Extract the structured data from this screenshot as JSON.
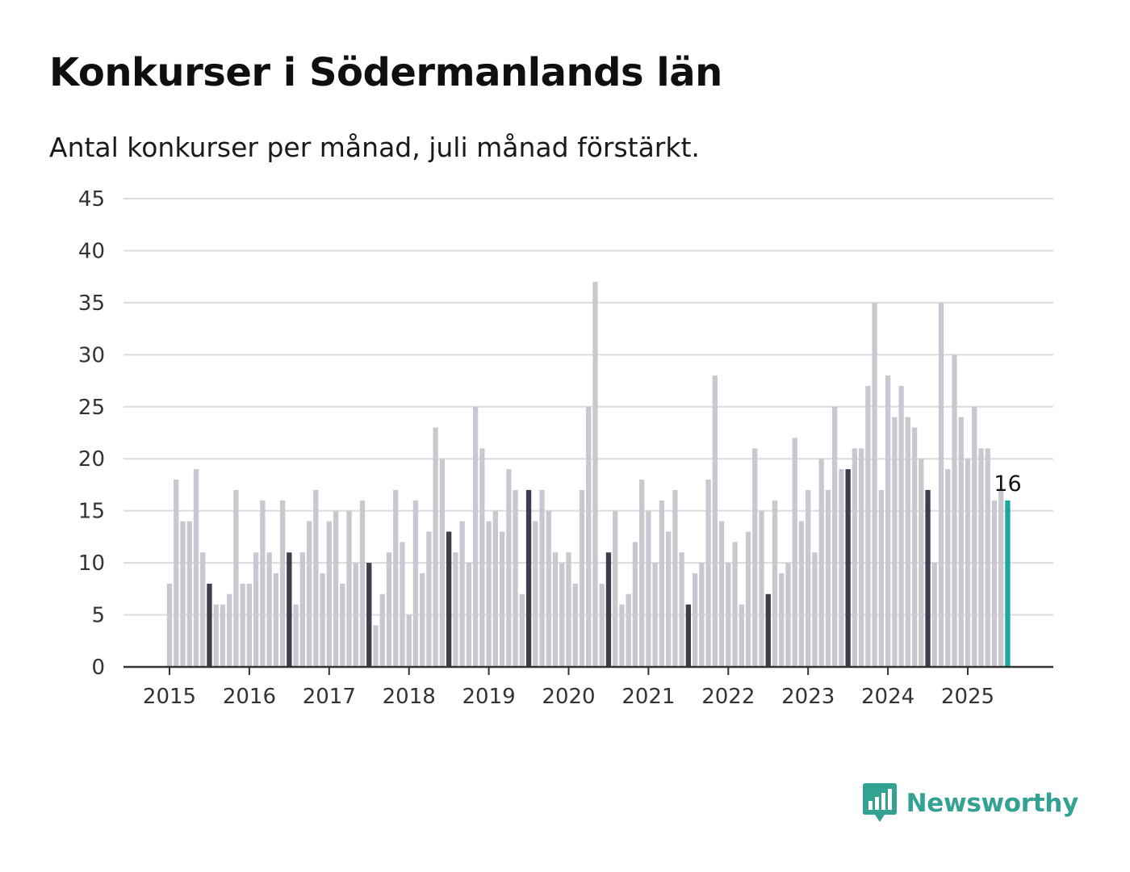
{
  "title": "Konkurser i Södermanlands län",
  "subtitle": "Antal konkurser per månad, juli månad förstärkt.",
  "brand": {
    "name": "Newsworthy",
    "color": "#34a292",
    "icon": "bar-chart-speech-icon"
  },
  "colors": {
    "bar": "#c8c8d0",
    "highlight": "#3d3d4b",
    "latest": "#19a89a",
    "grid": "#dcdcdc",
    "axis": "#333333"
  },
  "chart_data": {
    "type": "bar",
    "title": "Konkurser i Södermanlands län",
    "subtitle": "Antal konkurser per månad, juli månad förstärkt.",
    "xlabel": "",
    "ylabel": "",
    "ylim": [
      0,
      45
    ],
    "yticks": [
      0,
      5,
      10,
      15,
      20,
      25,
      30,
      35,
      40,
      45
    ],
    "x_tick_labels": [
      "2015",
      "2016",
      "2017",
      "2018",
      "2019",
      "2020",
      "2021",
      "2022",
      "2023",
      "2024",
      "2025"
    ],
    "grid": true,
    "start": "2015-01",
    "frequency": "monthly",
    "highlight_month": "juli",
    "latest_label": "16",
    "values": [
      8,
      18,
      14,
      14,
      19,
      11,
      8,
      6,
      6,
      7,
      17,
      8,
      8,
      11,
      16,
      11,
      9,
      16,
      11,
      6,
      11,
      14,
      17,
      9,
      14,
      15,
      8,
      15,
      10,
      16,
      10,
      4,
      7,
      11,
      17,
      12,
      5,
      16,
      9,
      13,
      23,
      20,
      13,
      11,
      14,
      10,
      25,
      21,
      14,
      15,
      13,
      19,
      17,
      7,
      17,
      14,
      17,
      15,
      11,
      10,
      11,
      8,
      17,
      25,
      37,
      8,
      11,
      15,
      6,
      7,
      12,
      18,
      15,
      10,
      16,
      13,
      17,
      11,
      6,
      9,
      10,
      18,
      28,
      14,
      10,
      12,
      6,
      13,
      21,
      15,
      7,
      16,
      9,
      10,
      22,
      14,
      17,
      11,
      20,
      17,
      25,
      19,
      19,
      21,
      21,
      27,
      35,
      17,
      28,
      24,
      27,
      24,
      23,
      20,
      17,
      10,
      35,
      19,
      30,
      24,
      20,
      25,
      21,
      21,
      16,
      17,
      16
    ]
  }
}
